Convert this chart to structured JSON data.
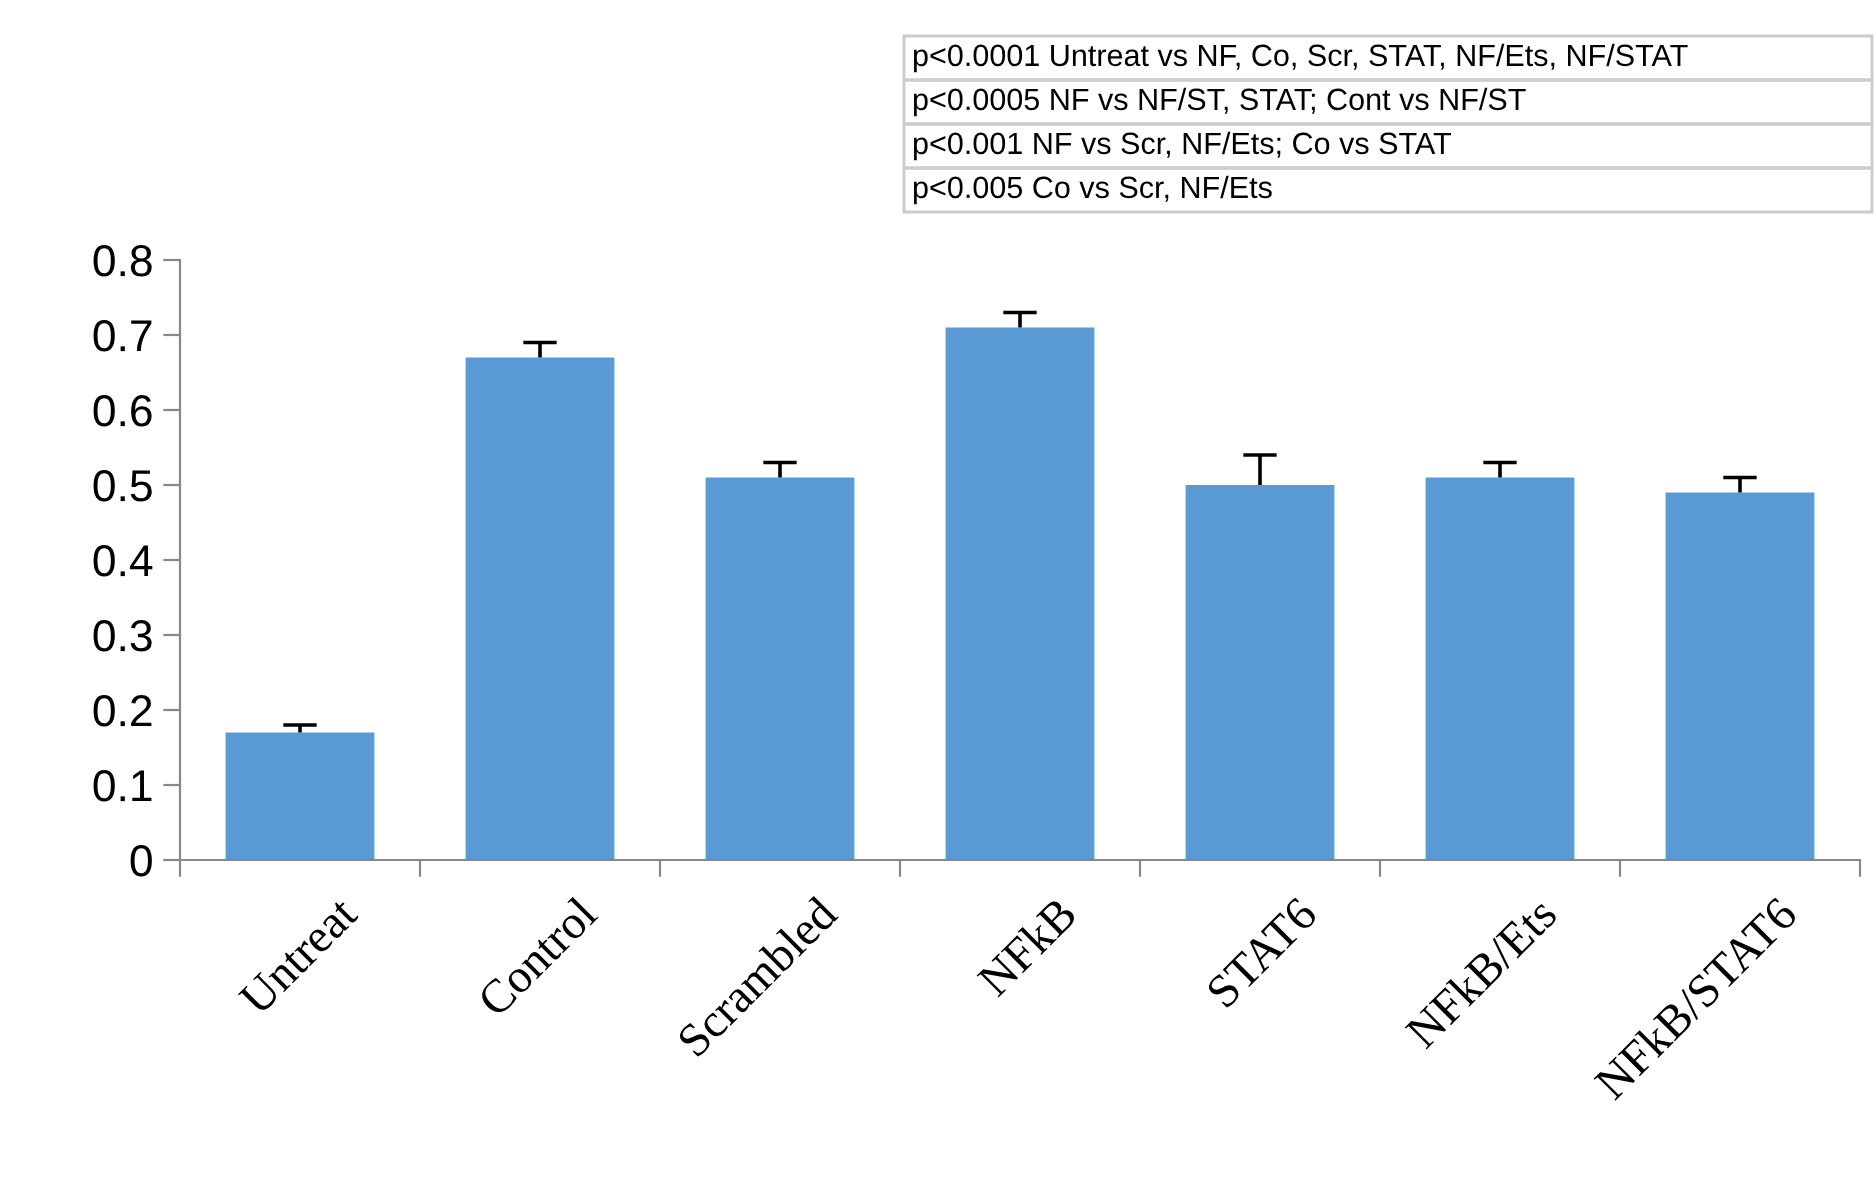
{
  "chart_data": {
    "type": "bar",
    "categories": [
      "Untreat",
      "Control",
      "Scrambled",
      "NFkB",
      "STAT6",
      "NFkB/Ets",
      "NFkB/STAT6"
    ],
    "values": [
      0.17,
      0.67,
      0.51,
      0.71,
      0.5,
      0.51,
      0.49
    ],
    "errors": [
      [
        0.17,
        0.18
      ],
      [
        0.67,
        0.69
      ],
      [
        0.51,
        0.53
      ],
      [
        0.71,
        0.73
      ],
      [
        0.5,
        0.54
      ],
      [
        0.51,
        0.53
      ],
      [
        0.49,
        0.51
      ]
    ],
    "color": "#5b9bd5",
    "ylim": [
      0,
      0.8
    ],
    "yticks": [
      0,
      0.1,
      0.2,
      0.3,
      0.4,
      0.5,
      0.6,
      0.7,
      0.8
    ],
    "grid": false,
    "legend": false,
    "annotations": [
      "p<0.0001 Untreat vs NF, Co, Scr, STAT, NF/Ets, NF/STAT",
      "p<0.0005 NF vs NF/ST, STAT; Cont vs NF/ST",
      "p<0.001 NF vs Scr, NF/Ets; Co vs STAT",
      "p<0.005 Co vs Scr, NF/Ets"
    ]
  }
}
